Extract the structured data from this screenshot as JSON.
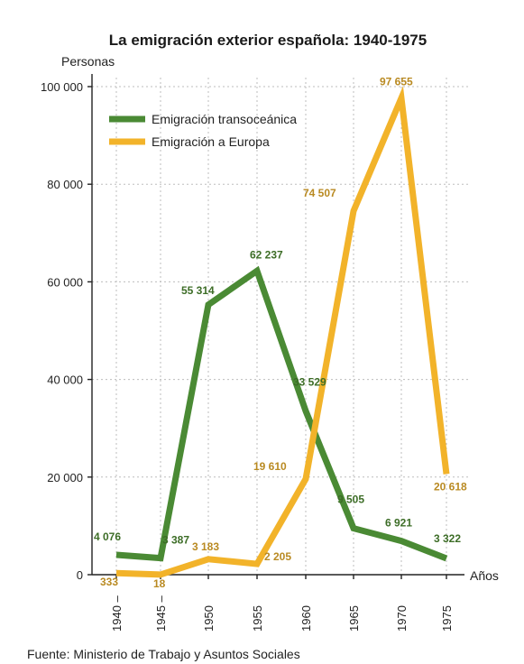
{
  "chart_data": {
    "type": "line",
    "title": "La emigración exterior española: 1940-1975",
    "ylabel": "Personas",
    "xlabel": "Años",
    "source": "Fuente: Ministerio de Trabajo y Asuntos Sociales",
    "categories": [
      "1940 –",
      "1945 –",
      "1950",
      "1955",
      "1960",
      "1965",
      "1970",
      "1975"
    ],
    "ylim": [
      0,
      100000
    ],
    "yticks": [
      0,
      20000,
      40000,
      60000,
      80000,
      100000
    ],
    "ytick_labels": [
      "0",
      "20 000",
      "40 000",
      "60 000",
      "80 000",
      "100 000"
    ],
    "grid": true,
    "legend_position": "top-left",
    "series": [
      {
        "name": "Emigración transoceánica",
        "color": "#4a8a34",
        "values": [
          4076,
          3387,
          55314,
          62237,
          33529,
          9505,
          6921,
          3322
        ],
        "labels": [
          "4 076",
          "3 387",
          "55 314",
          "62 237",
          "33 529",
          "9 505",
          "6 921",
          "3 322"
        ]
      },
      {
        "name": "Emigración a Europa",
        "color": "#f2b32a",
        "values": [
          333,
          18,
          3183,
          2205,
          19610,
          74507,
          97655,
          20618
        ],
        "labels": [
          "333",
          "18",
          "3 183",
          "2 205",
          "19 610",
          "74 507",
          "97 655",
          "20 618"
        ]
      }
    ]
  }
}
